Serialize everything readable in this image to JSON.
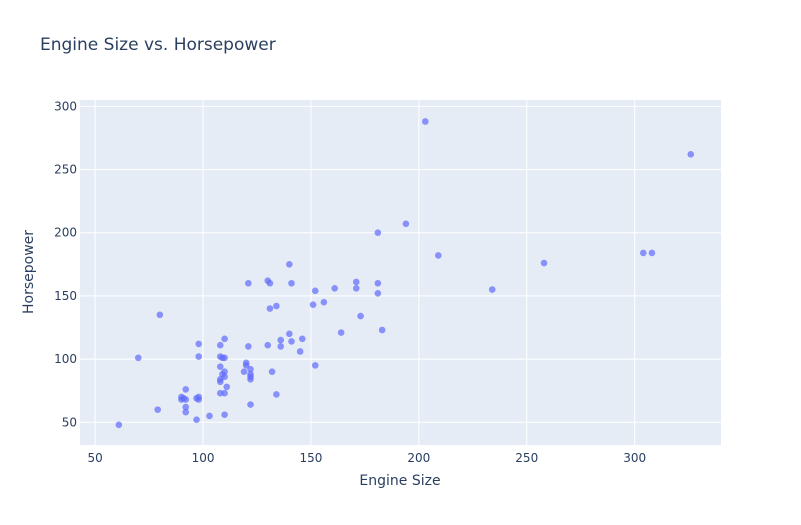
{
  "chart_data": {
    "type": "scatter",
    "title": "Engine Size vs. Horsepower",
    "xlabel": "Engine Size",
    "ylabel": "Horsepower",
    "xlim": [
      43,
      340
    ],
    "ylim": [
      32,
      305
    ],
    "x_ticks": [
      50,
      100,
      150,
      200,
      250,
      300
    ],
    "y_ticks": [
      50,
      100,
      150,
      200,
      250,
      300
    ],
    "grid": true,
    "legend": "none",
    "colors": {
      "plot_bg": "#e5ecf6",
      "grid": "#ffffff",
      "marker": "#636efa",
      "text": "#2a3f5f"
    },
    "points": [
      [
        61,
        48
      ],
      [
        70,
        101
      ],
      [
        79,
        60
      ],
      [
        80,
        135
      ],
      [
        90,
        68
      ],
      [
        90,
        70
      ],
      [
        91,
        69
      ],
      [
        92,
        68
      ],
      [
        92,
        76
      ],
      [
        92,
        62
      ],
      [
        92,
        58
      ],
      [
        97,
        52
      ],
      [
        97,
        69
      ],
      [
        98,
        68
      ],
      [
        98,
        70
      ],
      [
        98,
        102
      ],
      [
        98,
        112
      ],
      [
        103,
        55
      ],
      [
        108,
        82
      ],
      [
        108,
        73
      ],
      [
        108,
        94
      ],
      [
        108,
        111
      ],
      [
        108,
        102
      ],
      [
        108,
        84
      ],
      [
        109,
        101
      ],
      [
        109,
        88
      ],
      [
        110,
        56
      ],
      [
        110,
        73
      ],
      [
        110,
        86
      ],
      [
        110,
        101
      ],
      [
        110,
        116
      ],
      [
        110,
        90
      ],
      [
        111,
        78
      ],
      [
        119,
        90
      ],
      [
        120,
        97
      ],
      [
        120,
        95
      ],
      [
        121,
        110
      ],
      [
        121,
        160
      ],
      [
        122,
        64
      ],
      [
        122,
        84
      ],
      [
        122,
        86
      ],
      [
        122,
        88
      ],
      [
        122,
        92
      ],
      [
        130,
        111
      ],
      [
        130,
        162
      ],
      [
        131,
        140
      ],
      [
        131,
        160
      ],
      [
        132,
        90
      ],
      [
        134,
        72
      ],
      [
        134,
        142
      ],
      [
        136,
        110
      ],
      [
        136,
        115
      ],
      [
        140,
        120
      ],
      [
        140,
        175
      ],
      [
        141,
        114
      ],
      [
        141,
        160
      ],
      [
        145,
        106
      ],
      [
        146,
        116
      ],
      [
        151,
        143
      ],
      [
        152,
        95
      ],
      [
        152,
        154
      ],
      [
        156,
        145
      ],
      [
        161,
        156
      ],
      [
        164,
        121
      ],
      [
        171,
        156
      ],
      [
        171,
        161
      ],
      [
        173,
        134
      ],
      [
        181,
        152
      ],
      [
        181,
        160
      ],
      [
        181,
        200
      ],
      [
        183,
        123
      ],
      [
        194,
        207
      ],
      [
        203,
        288
      ],
      [
        209,
        182
      ],
      [
        234,
        155
      ],
      [
        258,
        176
      ],
      [
        304,
        184
      ],
      [
        308,
        184
      ],
      [
        326,
        262
      ]
    ]
  }
}
